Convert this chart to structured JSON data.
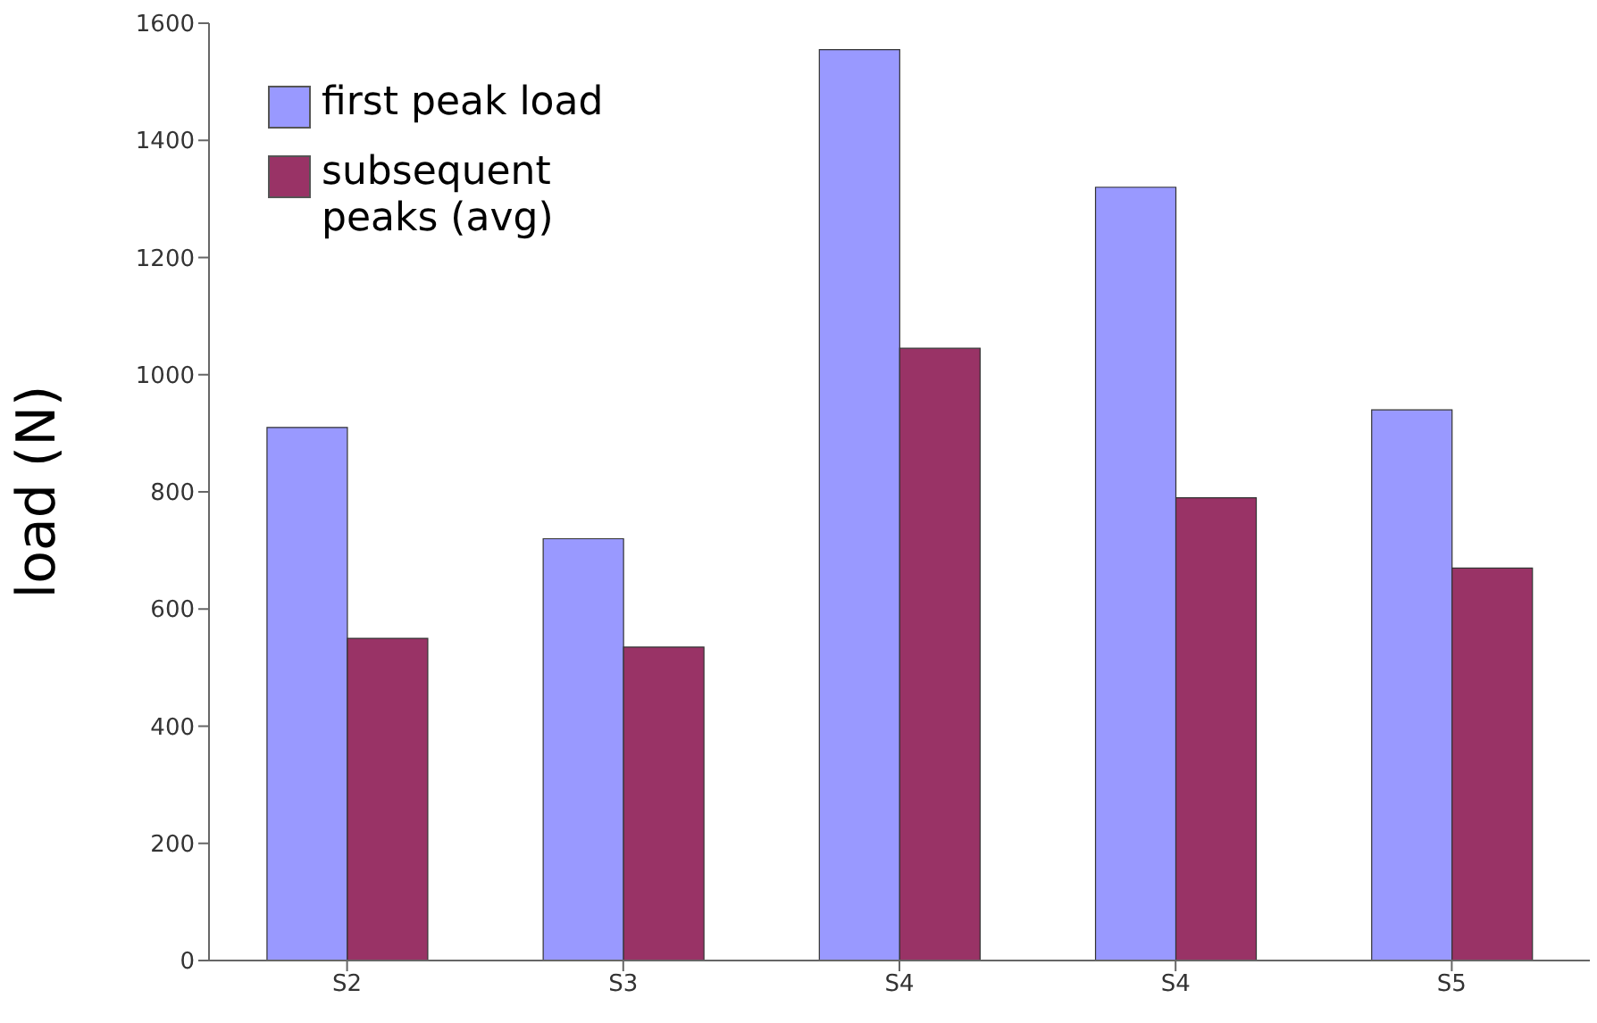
{
  "chart_data": {
    "type": "bar",
    "ylabel": "load (N)",
    "categories": [
      "S2",
      "S3",
      "S4",
      "S4",
      "S5"
    ],
    "series": [
      {
        "name": "first peak load",
        "color": "#9999ff",
        "values": [
          910,
          720,
          1555,
          1320,
          940
        ]
      },
      {
        "name": "subsequent peaks (avg)",
        "color": "#993366",
        "values": [
          550,
          535,
          1045,
          790,
          670
        ]
      }
    ],
    "ylim": [
      0,
      1600
    ],
    "yticks": [
      0,
      200,
      400,
      600,
      800,
      1000,
      1200,
      1400,
      1600
    ],
    "grid": false,
    "legend": "top left"
  }
}
